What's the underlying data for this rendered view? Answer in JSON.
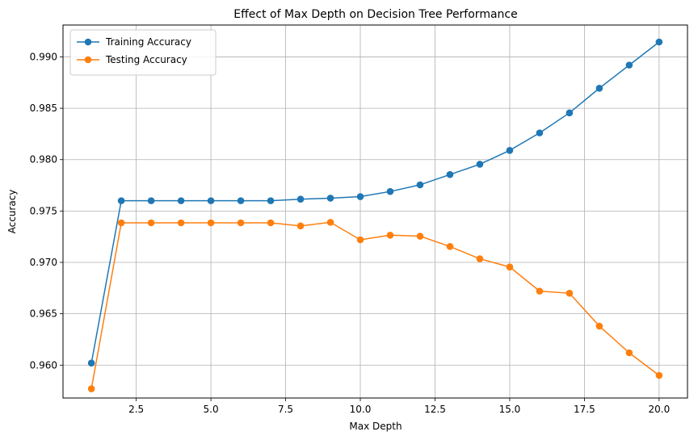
{
  "chart_data": {
    "type": "line",
    "title": "Effect of Max Depth on Decision Tree Performance",
    "xlabel": "Max Depth",
    "ylabel": "Accuracy",
    "xlim": [
      0.05,
      20.95
    ],
    "ylim": [
      0.9568,
      0.9931
    ],
    "xticks": [
      2.5,
      5.0,
      7.5,
      10.0,
      12.5,
      15.0,
      17.5,
      20.0
    ],
    "xtick_labels": [
      "2.5",
      "5.0",
      "7.5",
      "10.0",
      "12.5",
      "15.0",
      "17.5",
      "20.0"
    ],
    "yticks": [
      0.96,
      0.965,
      0.97,
      0.975,
      0.98,
      0.985,
      0.99
    ],
    "ytick_labels": [
      "0.960",
      "0.965",
      "0.970",
      "0.975",
      "0.980",
      "0.985",
      "0.990"
    ],
    "grid": true,
    "legend_position": "top-left",
    "x": [
      1,
      2,
      3,
      4,
      5,
      6,
      7,
      8,
      9,
      10,
      11,
      12,
      13,
      14,
      15,
      16,
      17,
      18,
      19,
      20
    ],
    "series": [
      {
        "name": "Training Accuracy",
        "color": "#1f77b4",
        "values": [
          0.9602,
          0.976,
          0.976,
          0.976,
          0.976,
          0.976,
          0.976,
          0.97615,
          0.97625,
          0.9764,
          0.9769,
          0.97755,
          0.97855,
          0.97955,
          0.9809,
          0.9826,
          0.98455,
          0.98695,
          0.9892,
          0.99145
        ]
      },
      {
        "name": "Testing Accuracy",
        "color": "#ff7f0e",
        "values": [
          0.9577,
          0.97385,
          0.97385,
          0.97385,
          0.97385,
          0.97385,
          0.97385,
          0.97355,
          0.9739,
          0.9722,
          0.97265,
          0.97255,
          0.97155,
          0.97035,
          0.96955,
          0.9672,
          0.967,
          0.9638,
          0.9612,
          0.959
        ]
      }
    ]
  }
}
